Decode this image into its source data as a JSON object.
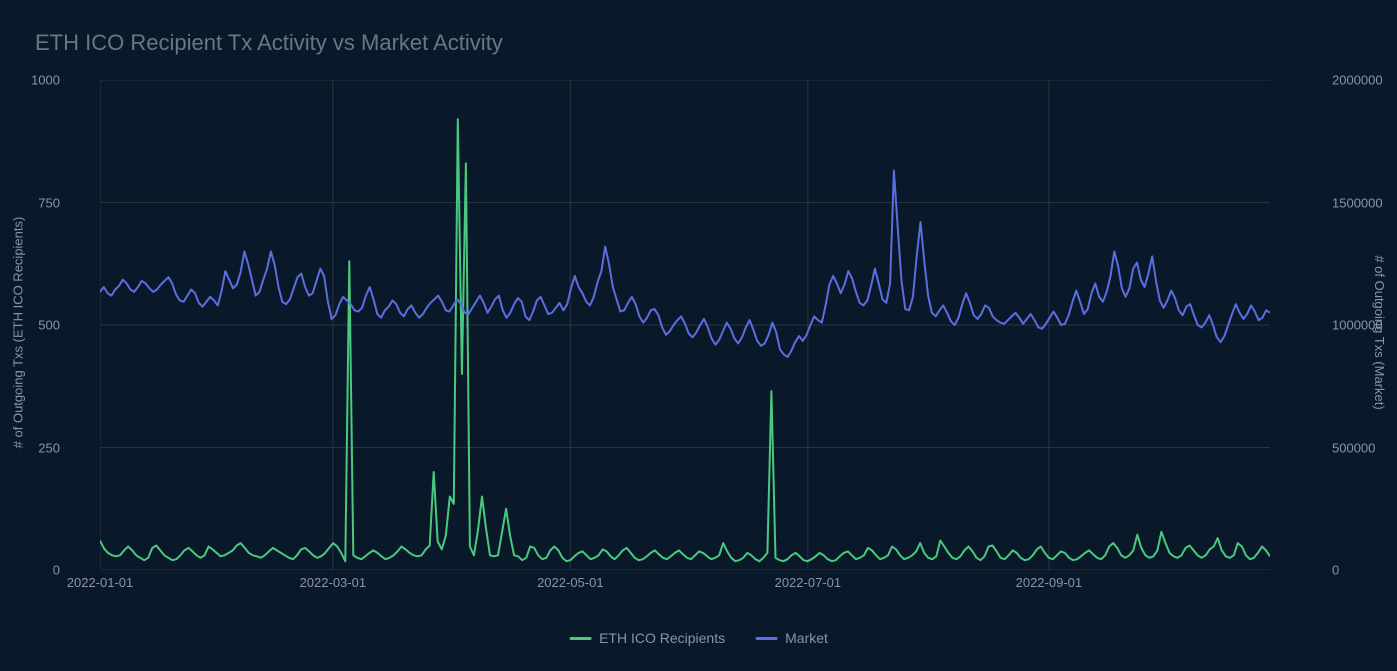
{
  "chart": {
    "type": "line",
    "title": "ETH ICO Recipient Tx Activity vs Market Activity",
    "title_color": "#6b7684",
    "title_fontsize": 22,
    "background_color": "#0a1929",
    "plot_background": "#0a1929",
    "grid_color": "#2a3441",
    "axis_text_color": "#8a94a6",
    "axis_fontsize": 13,
    "y_left": {
      "label": "# of Outgoing Txs (ETH ICO Recipients)",
      "min": 0,
      "max": 1000,
      "ticks": [
        0,
        250,
        500,
        750,
        1000
      ]
    },
    "y_right": {
      "label": "# of Outgoing Txs (Market)",
      "min": 0,
      "max": 2000000,
      "ticks": [
        0,
        500000,
        1000000,
        1500000,
        2000000
      ]
    },
    "x_axis": {
      "ticks": [
        "2022-01-01",
        "2022-03-01",
        "2022-05-01",
        "2022-07-01",
        "2022-09-01"
      ],
      "tick_positions": [
        0,
        0.199,
        0.402,
        0.605,
        0.811
      ]
    },
    "series": [
      {
        "name": "ETH ICO Recipients",
        "color": "#4ac97e",
        "axis": "left",
        "line_width": 2,
        "data": [
          60,
          44,
          35,
          30,
          28,
          30,
          40,
          48,
          40,
          30,
          25,
          20,
          25,
          45,
          50,
          40,
          30,
          25,
          20,
          22,
          30,
          40,
          45,
          38,
          30,
          25,
          30,
          48,
          42,
          35,
          28,
          30,
          35,
          40,
          50,
          55,
          45,
          35,
          30,
          28,
          25,
          30,
          38,
          45,
          40,
          35,
          30,
          25,
          22,
          30,
          42,
          45,
          38,
          30,
          25,
          28,
          35,
          45,
          55,
          48,
          35,
          18,
          630,
          30,
          25,
          22,
          28,
          35,
          40,
          35,
          28,
          22,
          25,
          30,
          38,
          48,
          42,
          35,
          30,
          28,
          30,
          42,
          50,
          200,
          58,
          42,
          70,
          150,
          135,
          920,
          400,
          830,
          48,
          30,
          80,
          150,
          85,
          30,
          28,
          30,
          78,
          125,
          70,
          30,
          28,
          20,
          25,
          48,
          45,
          30,
          22,
          25,
          40,
          48,
          40,
          25,
          18,
          20,
          28,
          35,
          38,
          30,
          22,
          25,
          30,
          42,
          38,
          28,
          22,
          30,
          40,
          45,
          35,
          25,
          20,
          22,
          28,
          35,
          40,
          32,
          25,
          22,
          28,
          35,
          40,
          32,
          25,
          22,
          30,
          38,
          35,
          28,
          22,
          25,
          30,
          55,
          38,
          25,
          18,
          20,
          25,
          35,
          30,
          22,
          18,
          25,
          35,
          365,
          25,
          20,
          18,
          22,
          30,
          35,
          28,
          20,
          18,
          22,
          28,
          35,
          30,
          22,
          18,
          20,
          28,
          35,
          38,
          30,
          22,
          25,
          30,
          45,
          40,
          30,
          22,
          25,
          30,
          48,
          42,
          30,
          22,
          25,
          30,
          38,
          55,
          35,
          25,
          22,
          28,
          60,
          48,
          35,
          25,
          22,
          28,
          40,
          48,
          38,
          25,
          20,
          28,
          48,
          50,
          38,
          25,
          22,
          30,
          40,
          35,
          25,
          20,
          22,
          30,
          42,
          48,
          35,
          25,
          22,
          30,
          38,
          35,
          25,
          20,
          22,
          28,
          35,
          40,
          32,
          25,
          22,
          30,
          48,
          55,
          45,
          30,
          25,
          30,
          40,
          72,
          45,
          30,
          25,
          28,
          40,
          78,
          55,
          35,
          28,
          25,
          30,
          45,
          50,
          40,
          30,
          25,
          30,
          42,
          48,
          65,
          40,
          28,
          25,
          30,
          55,
          48,
          30,
          22,
          25,
          35,
          48,
          40,
          28
        ]
      },
      {
        "name": "Market",
        "color": "#5b6ee1",
        "axis": "right",
        "line_width": 2,
        "data": [
          1135000,
          1155000,
          1130000,
          1120000,
          1145000,
          1160000,
          1185000,
          1170000,
          1145000,
          1135000,
          1155000,
          1180000,
          1170000,
          1150000,
          1135000,
          1145000,
          1165000,
          1180000,
          1195000,
          1170000,
          1125000,
          1100000,
          1095000,
          1120000,
          1145000,
          1130000,
          1090000,
          1075000,
          1095000,
          1115000,
          1100000,
          1080000,
          1140000,
          1220000,
          1185000,
          1150000,
          1165000,
          1215000,
          1300000,
          1250000,
          1185000,
          1120000,
          1135000,
          1185000,
          1230000,
          1300000,
          1245000,
          1155000,
          1095000,
          1085000,
          1105000,
          1150000,
          1195000,
          1210000,
          1155000,
          1120000,
          1130000,
          1180000,
          1230000,
          1200000,
          1095000,
          1025000,
          1040000,
          1085000,
          1115000,
          1100000,
          1085000,
          1060000,
          1055000,
          1070000,
          1120000,
          1155000,
          1105000,
          1045000,
          1030000,
          1060000,
          1075000,
          1100000,
          1085000,
          1050000,
          1035000,
          1065000,
          1080000,
          1050000,
          1030000,
          1045000,
          1070000,
          1090000,
          1105000,
          1120000,
          1095000,
          1060000,
          1055000,
          1080000,
          1105000,
          1085000,
          1050000,
          1045000,
          1070000,
          1095000,
          1120000,
          1090000,
          1050000,
          1075000,
          1105000,
          1120000,
          1060000,
          1030000,
          1050000,
          1085000,
          1110000,
          1095000,
          1035000,
          1020000,
          1055000,
          1100000,
          1115000,
          1080000,
          1045000,
          1050000,
          1070000,
          1090000,
          1060000,
          1085000,
          1150000,
          1200000,
          1155000,
          1130000,
          1095000,
          1080000,
          1115000,
          1175000,
          1220000,
          1320000,
          1250000,
          1155000,
          1105000,
          1055000,
          1060000,
          1090000,
          1115000,
          1085000,
          1035000,
          1010000,
          1030000,
          1060000,
          1065000,
          1040000,
          990000,
          960000,
          975000,
          1000000,
          1020000,
          1035000,
          1005000,
          965000,
          950000,
          970000,
          1000000,
          1025000,
          990000,
          945000,
          920000,
          940000,
          975000,
          1010000,
          985000,
          945000,
          925000,
          950000,
          990000,
          1020000,
          980000,
          935000,
          915000,
          925000,
          960000,
          1010000,
          970000,
          900000,
          880000,
          870000,
          895000,
          930000,
          955000,
          935000,
          960000,
          1000000,
          1035000,
          1020000,
          1010000,
          1080000,
          1165000,
          1200000,
          1170000,
          1130000,
          1165000,
          1220000,
          1190000,
          1135000,
          1090000,
          1080000,
          1100000,
          1160000,
          1230000,
          1170000,
          1105000,
          1090000,
          1170000,
          1630000,
          1400000,
          1180000,
          1065000,
          1060000,
          1115000,
          1280000,
          1420000,
          1260000,
          1120000,
          1050000,
          1035000,
          1060000,
          1080000,
          1050000,
          1015000,
          1000000,
          1030000,
          1085000,
          1130000,
          1090000,
          1040000,
          1025000,
          1045000,
          1080000,
          1070000,
          1035000,
          1020000,
          1010000,
          1005000,
          1020000,
          1035000,
          1050000,
          1030000,
          1005000,
          1025000,
          1045000,
          1020000,
          990000,
          985000,
          1005000,
          1030000,
          1055000,
          1030000,
          1000000,
          1005000,
          1040000,
          1095000,
          1140000,
          1095000,
          1045000,
          1065000,
          1130000,
          1170000,
          1115000,
          1095000,
          1135000,
          1200000,
          1300000,
          1240000,
          1150000,
          1115000,
          1150000,
          1230000,
          1255000,
          1185000,
          1155000,
          1210000,
          1280000,
          1180000,
          1100000,
          1070000,
          1100000,
          1140000,
          1110000,
          1060000,
          1040000,
          1075000,
          1085000,
          1040000,
          1000000,
          990000,
          1010000,
          1040000,
          1000000,
          950000,
          930000,
          955000,
          1000000,
          1045000,
          1085000,
          1050000,
          1025000,
          1045000,
          1080000,
          1055000,
          1020000,
          1030000,
          1060000,
          1050000
        ]
      }
    ],
    "legend": {
      "items": [
        {
          "label": "ETH ICO Recipients",
          "color": "#4ac97e"
        },
        {
          "label": "Market",
          "color": "#5b6ee1"
        }
      ]
    }
  }
}
